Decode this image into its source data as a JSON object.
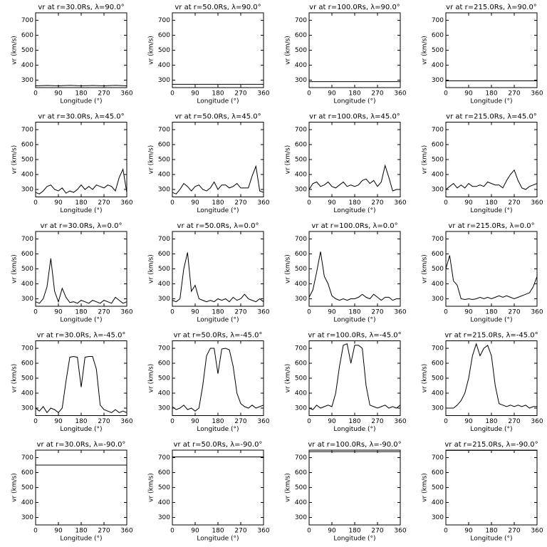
{
  "chart_data": [
    {
      "type": "line",
      "title": "vr at r=30.0Rs, λ=90.0°",
      "xlabel": "Longitude (°)",
      "ylabel": "vr (km/s)",
      "color": "#000000",
      "xlim": [
        0,
        360
      ],
      "ylim": [
        250,
        750
      ],
      "xticks": [
        0,
        90,
        180,
        270,
        360
      ],
      "yticks": [
        300,
        400,
        500,
        600,
        700
      ],
      "x": [
        0,
        45,
        90,
        135,
        180,
        225,
        270,
        315,
        360
      ],
      "values": [
        262,
        264,
        262,
        265,
        262,
        264,
        262,
        265,
        262
      ]
    },
    {
      "type": "line",
      "title": "vr at r=50.0Rs, λ=90.0°",
      "xlabel": "Longitude (°)",
      "ylabel": "vr (km/s)",
      "color": "#000000",
      "xlim": [
        0,
        360
      ],
      "ylim": [
        250,
        750
      ],
      "xticks": [
        0,
        90,
        180,
        270,
        360
      ],
      "yticks": [
        300,
        400,
        500,
        600,
        700
      ],
      "x": [
        0,
        360
      ],
      "values": [
        272,
        272
      ]
    },
    {
      "type": "line",
      "title": "vr at r=100.0Rs, λ=90.0°",
      "xlabel": "Longitude (°)",
      "ylabel": "vr (km/s)",
      "color": "#000000",
      "xlim": [
        0,
        360
      ],
      "ylim": [
        250,
        750
      ],
      "xticks": [
        0,
        90,
        180,
        270,
        360
      ],
      "yticks": [
        300,
        400,
        500,
        600,
        700
      ],
      "x": [
        0,
        360
      ],
      "values": [
        290,
        290
      ]
    },
    {
      "type": "line",
      "title": "vr at r=215.0Rs, λ=90.0°",
      "xlabel": "Longitude (°)",
      "ylabel": "vr (km/s)",
      "color": "#000000",
      "xlim": [
        0,
        360
      ],
      "ylim": [
        250,
        750
      ],
      "xticks": [
        0,
        90,
        180,
        270,
        360
      ],
      "yticks": [
        300,
        400,
        500,
        600,
        700
      ],
      "x": [
        0,
        360
      ],
      "values": [
        295,
        295
      ]
    },
    {
      "type": "line",
      "title": "vr at r=30.0Rs, λ=45.0°",
      "xlabel": "Longitude (°)",
      "ylabel": "vr (km/s)",
      "color": "#000000",
      "xlim": [
        0,
        360
      ],
      "ylim": [
        250,
        750
      ],
      "xticks": [
        0,
        90,
        180,
        270,
        360
      ],
      "yticks": [
        300,
        400,
        500,
        600,
        700
      ],
      "x": [
        0,
        15,
        30,
        45,
        60,
        75,
        90,
        105,
        120,
        135,
        150,
        165,
        180,
        195,
        210,
        225,
        240,
        255,
        270,
        285,
        300,
        315,
        330,
        345,
        360
      ],
      "values": [
        280,
        270,
        290,
        320,
        330,
        300,
        290,
        310,
        275,
        290,
        280,
        300,
        330,
        300,
        320,
        300,
        330,
        320,
        310,
        330,
        320,
        290,
        380,
        435,
        280
      ]
    },
    {
      "type": "line",
      "title": "vr at r=50.0Rs, λ=45.0°",
      "xlabel": "Longitude (°)",
      "ylabel": "vr (km/s)",
      "color": "#000000",
      "xlim": [
        0,
        360
      ],
      "ylim": [
        250,
        750
      ],
      "xticks": [
        0,
        90,
        180,
        270,
        360
      ],
      "yticks": [
        300,
        400,
        500,
        600,
        700
      ],
      "x": [
        0,
        15,
        30,
        45,
        60,
        75,
        90,
        105,
        120,
        135,
        150,
        165,
        180,
        195,
        210,
        225,
        240,
        255,
        270,
        285,
        300,
        315,
        330,
        345,
        360
      ],
      "values": [
        280,
        270,
        300,
        340,
        320,
        290,
        320,
        330,
        300,
        290,
        310,
        350,
        300,
        330,
        330,
        310,
        320,
        340,
        310,
        310,
        310,
        390,
        455,
        290,
        280
      ]
    },
    {
      "type": "line",
      "title": "vr at r=100.0Rs, λ=45.0°",
      "xlabel": "Longitude (°)",
      "ylabel": "vr (km/s)",
      "color": "#000000",
      "xlim": [
        0,
        360
      ],
      "ylim": [
        250,
        750
      ],
      "xticks": [
        0,
        90,
        180,
        270,
        360
      ],
      "yticks": [
        300,
        400,
        500,
        600,
        700
      ],
      "x": [
        0,
        15,
        30,
        45,
        60,
        75,
        90,
        105,
        120,
        135,
        150,
        165,
        180,
        195,
        210,
        225,
        240,
        255,
        270,
        285,
        300,
        315,
        330,
        345,
        360
      ],
      "values": [
        300,
        340,
        350,
        320,
        330,
        350,
        320,
        310,
        330,
        350,
        320,
        330,
        320,
        330,
        360,
        370,
        340,
        360,
        320,
        350,
        460,
        380,
        290,
        300,
        300
      ]
    },
    {
      "type": "line",
      "title": "vr at r=215.0Rs, λ=45.0°",
      "xlabel": "Longitude (°)",
      "ylabel": "vr (km/s)",
      "color": "#000000",
      "xlim": [
        0,
        360
      ],
      "ylim": [
        250,
        750
      ],
      "xticks": [
        0,
        90,
        180,
        270,
        360
      ],
      "yticks": [
        300,
        400,
        500,
        600,
        700
      ],
      "x": [
        0,
        15,
        30,
        45,
        60,
        75,
        90,
        105,
        120,
        135,
        150,
        165,
        180,
        195,
        210,
        225,
        240,
        255,
        270,
        285,
        300,
        315,
        330,
        345,
        360
      ],
      "values": [
        300,
        320,
        340,
        310,
        330,
        310,
        340,
        320,
        320,
        330,
        320,
        350,
        340,
        330,
        330,
        310,
        360,
        400,
        430,
        360,
        310,
        300,
        320,
        330,
        340
      ]
    },
    {
      "type": "line",
      "title": "vr at r=30.0Rs, λ=0.0°",
      "xlabel": "Longitude (°)",
      "ylabel": "vr (km/s)",
      "color": "#000000",
      "xlim": [
        0,
        360
      ],
      "ylim": [
        250,
        750
      ],
      "xticks": [
        0,
        90,
        180,
        270,
        360
      ],
      "yticks": [
        300,
        400,
        500,
        600,
        700
      ],
      "x": [
        0,
        15,
        30,
        45,
        60,
        75,
        90,
        105,
        120,
        135,
        150,
        165,
        180,
        195,
        210,
        225,
        240,
        255,
        270,
        285,
        300,
        315,
        330,
        345,
        360
      ],
      "values": [
        280,
        270,
        300,
        380,
        570,
        350,
        280,
        370,
        310,
        275,
        280,
        270,
        290,
        280,
        270,
        290,
        280,
        270,
        290,
        280,
        270,
        310,
        290,
        270,
        280
      ]
    },
    {
      "type": "line",
      "title": "vr at r=50.0Rs, λ=0.0°",
      "xlabel": "Longitude (°)",
      "ylabel": "vr (km/s)",
      "color": "#000000",
      "xlim": [
        0,
        360
      ],
      "ylim": [
        250,
        750
      ],
      "xticks": [
        0,
        90,
        180,
        270,
        360
      ],
      "yticks": [
        300,
        400,
        500,
        600,
        700
      ],
      "x": [
        0,
        15,
        30,
        45,
        60,
        75,
        90,
        105,
        120,
        135,
        150,
        165,
        180,
        195,
        210,
        225,
        240,
        255,
        270,
        285,
        300,
        315,
        330,
        345,
        360
      ],
      "values": [
        290,
        280,
        300,
        500,
        610,
        350,
        390,
        300,
        290,
        280,
        290,
        280,
        300,
        290,
        300,
        280,
        310,
        290,
        300,
        330,
        300,
        290,
        280,
        300,
        280
      ]
    },
    {
      "type": "line",
      "title": "vr at r=100.0Rs, λ=0.0°",
      "xlabel": "Longitude (°)",
      "ylabel": "vr (km/s)",
      "color": "#000000",
      "xlim": [
        0,
        360
      ],
      "ylim": [
        250,
        750
      ],
      "xticks": [
        0,
        90,
        180,
        270,
        360
      ],
      "yticks": [
        300,
        400,
        500,
        600,
        700
      ],
      "x": [
        0,
        15,
        30,
        45,
        60,
        75,
        90,
        105,
        120,
        135,
        150,
        165,
        180,
        195,
        210,
        225,
        240,
        255,
        270,
        285,
        300,
        315,
        330,
        345,
        360
      ],
      "values": [
        310,
        360,
        480,
        615,
        450,
        400,
        320,
        300,
        290,
        300,
        290,
        300,
        300,
        310,
        330,
        310,
        300,
        330,
        310,
        290,
        310,
        310,
        290,
        300,
        300
      ]
    },
    {
      "type": "line",
      "title": "vr at r=215.0Rs, λ=0.0°",
      "xlabel": "Longitude (°)",
      "ylabel": "vr (km/s)",
      "color": "#000000",
      "xlim": [
        0,
        360
      ],
      "ylim": [
        250,
        750
      ],
      "xticks": [
        0,
        90,
        180,
        270,
        360
      ],
      "yticks": [
        300,
        400,
        500,
        600,
        700
      ],
      "x": [
        0,
        15,
        30,
        45,
        60,
        75,
        90,
        105,
        120,
        135,
        150,
        165,
        180,
        195,
        210,
        225,
        240,
        255,
        270,
        285,
        300,
        315,
        330,
        345,
        360
      ],
      "values": [
        500,
        590,
        420,
        390,
        300,
        295,
        300,
        295,
        300,
        310,
        300,
        310,
        300,
        310,
        320,
        310,
        320,
        310,
        300,
        310,
        320,
        330,
        340,
        380,
        450
      ]
    },
    {
      "type": "line",
      "title": "vr at r=30.0Rs, λ=-45.0°",
      "xlabel": "Longitude (°)",
      "ylabel": "vr (km/s)",
      "color": "#000000",
      "xlim": [
        0,
        360
      ],
      "ylim": [
        250,
        750
      ],
      "xticks": [
        0,
        90,
        180,
        270,
        360
      ],
      "yticks": [
        300,
        400,
        500,
        600,
        700
      ],
      "x": [
        0,
        15,
        30,
        45,
        60,
        75,
        90,
        105,
        120,
        135,
        150,
        165,
        180,
        195,
        210,
        225,
        240,
        255,
        270,
        285,
        300,
        315,
        330,
        345,
        360
      ],
      "values": [
        300,
        280,
        310,
        270,
        300,
        290,
        270,
        300,
        480,
        640,
        645,
        640,
        440,
        640,
        645,
        645,
        560,
        320,
        290,
        280,
        270,
        290,
        270,
        280,
        270
      ]
    },
    {
      "type": "line",
      "title": "vr at r=50.0Rs, λ=-45.0°",
      "xlabel": "Longitude (°)",
      "ylabel": "vr (km/s)",
      "color": "#000000",
      "xlim": [
        0,
        360
      ],
      "ylim": [
        250,
        750
      ],
      "xticks": [
        0,
        90,
        180,
        270,
        360
      ],
      "yticks": [
        300,
        400,
        500,
        600,
        700
      ],
      "x": [
        0,
        15,
        30,
        45,
        60,
        75,
        90,
        105,
        120,
        135,
        150,
        165,
        180,
        195,
        210,
        225,
        240,
        255,
        270,
        285,
        300,
        315,
        330,
        345,
        360
      ],
      "values": [
        310,
        290,
        300,
        320,
        290,
        300,
        280,
        300,
        450,
        650,
        700,
        700,
        530,
        695,
        700,
        690,
        580,
        400,
        330,
        310,
        300,
        320,
        300,
        310,
        320
      ]
    },
    {
      "type": "line",
      "title": "vr at r=100.0Rs, λ=-45.0°",
      "xlabel": "Longitude (°)",
      "ylabel": "vr (km/s)",
      "color": "#000000",
      "xlim": [
        0,
        360
      ],
      "ylim": [
        250,
        750
      ],
      "xticks": [
        0,
        90,
        180,
        270,
        360
      ],
      "yticks": [
        300,
        400,
        500,
        600,
        700
      ],
      "x": [
        0,
        15,
        30,
        45,
        60,
        75,
        90,
        105,
        120,
        135,
        150,
        165,
        180,
        195,
        210,
        225,
        240,
        255,
        270,
        285,
        300,
        315,
        330,
        345,
        360
      ],
      "values": [
        300,
        290,
        320,
        300,
        310,
        320,
        310,
        400,
        580,
        720,
        730,
        600,
        720,
        720,
        700,
        450,
        320,
        310,
        300,
        310,
        320,
        300,
        310,
        300,
        320
      ]
    },
    {
      "type": "line",
      "title": "vr at r=215.0Rs, λ=-45.0°",
      "xlabel": "Longitude (°)",
      "ylabel": "vr (km/s)",
      "color": "#000000",
      "xlim": [
        0,
        360
      ],
      "ylim": [
        250,
        750
      ],
      "xticks": [
        0,
        90,
        180,
        270,
        360
      ],
      "yticks": [
        300,
        400,
        500,
        600,
        700
      ],
      "x": [
        0,
        15,
        30,
        45,
        60,
        75,
        90,
        105,
        120,
        135,
        150,
        165,
        180,
        195,
        210,
        225,
        240,
        255,
        270,
        285,
        300,
        315,
        330,
        345,
        360
      ],
      "values": [
        300,
        300,
        300,
        320,
        350,
        400,
        500,
        650,
        730,
        650,
        700,
        720,
        650,
        450,
        330,
        320,
        310,
        320,
        310,
        320,
        310,
        320,
        300,
        310,
        310
      ]
    },
    {
      "type": "line",
      "title": "vr at r=30.0Rs, λ=-90.0°",
      "xlabel": "Longitude (°)",
      "ylabel": "vr (km/s)",
      "color": "#000000",
      "xlim": [
        0,
        360
      ],
      "ylim": [
        250,
        750
      ],
      "xticks": [
        0,
        90,
        180,
        270,
        360
      ],
      "yticks": [
        300,
        400,
        500,
        600,
        700
      ],
      "x": [
        0,
        360
      ],
      "values": [
        650,
        650
      ]
    },
    {
      "type": "line",
      "title": "vr at r=50.0Rs, λ=-90.0°",
      "xlabel": "Longitude (°)",
      "ylabel": "vr (km/s)",
      "color": "#000000",
      "xlim": [
        0,
        360
      ],
      "ylim": [
        250,
        750
      ],
      "xticks": [
        0,
        90,
        180,
        270,
        360
      ],
      "yticks": [
        300,
        400,
        500,
        600,
        700
      ],
      "x": [
        0,
        360
      ],
      "values": [
        705,
        705
      ]
    },
    {
      "type": "line",
      "title": "vr at r=100.0Rs, λ=-90.0°",
      "xlabel": "Longitude (°)",
      "ylabel": "vr (km/s)",
      "color": "#000000",
      "xlim": [
        0,
        360
      ],
      "ylim": [
        250,
        750
      ],
      "xticks": [
        0,
        90,
        180,
        270,
        360
      ],
      "yticks": [
        300,
        400,
        500,
        600,
        700
      ],
      "x": [
        0,
        360
      ],
      "values": [
        740,
        740
      ]
    },
    {
      "type": "line",
      "title": "vr at r=215.0Rs, λ=-90.0°",
      "xlabel": "Longitude (°)",
      "ylabel": "vr (km/s)",
      "color": "#000000",
      "xlim": [
        0,
        360
      ],
      "ylim": [
        250,
        750
      ],
      "xticks": [
        0,
        90,
        180,
        270,
        360
      ],
      "yticks": [
        300,
        400,
        500,
        600,
        700
      ],
      "x": [
        0,
        360
      ],
      "values": [
        748,
        748
      ]
    }
  ]
}
